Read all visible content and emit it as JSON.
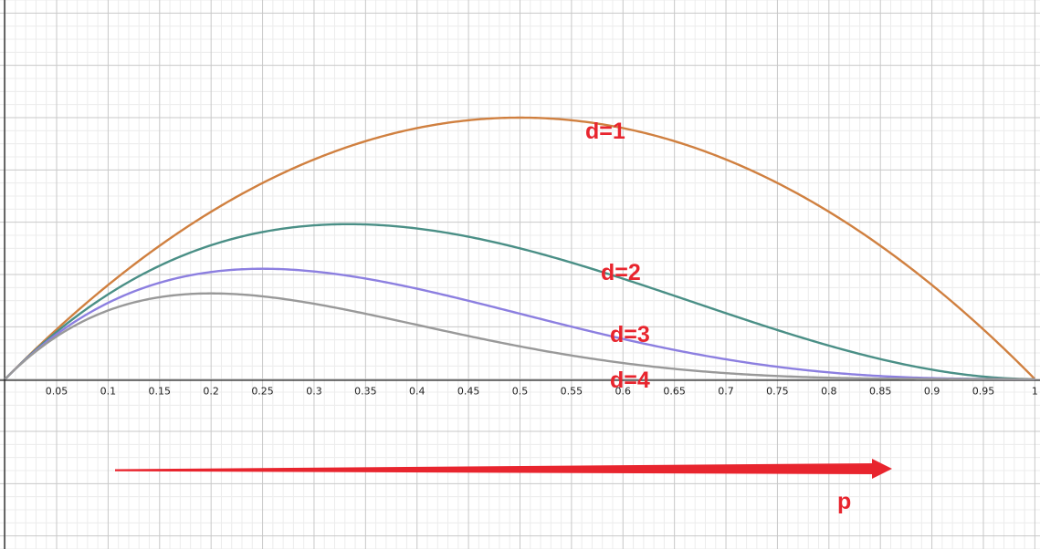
{
  "chart_data": {
    "type": "line",
    "grid": true,
    "xlim": [
      -0.005,
      1.005
    ],
    "ylim": [
      -0.1625,
      0.3625
    ],
    "x_ticks": [
      "0.05",
      "0.1",
      "0.15",
      "0.2",
      "0.25",
      "0.3",
      "0.35",
      "0.4",
      "0.45",
      "0.5",
      "0.55",
      "0.6",
      "0.65",
      "0.7",
      "0.75",
      "0.8",
      "0.85",
      "0.9",
      "0.95",
      "1"
    ],
    "series": [
      {
        "d": 1,
        "label": "d=1",
        "color": "#d08040",
        "x": [
          0,
          0.05,
          0.1,
          0.15,
          0.2,
          0.25,
          0.3,
          0.35,
          0.4,
          0.45,
          0.5,
          0.55,
          0.6,
          0.65,
          0.7,
          0.75,
          0.8,
          0.85,
          0.9,
          0.95,
          1
        ],
        "y": [
          0,
          0.0475,
          0.09,
          0.1275,
          0.16,
          0.1875,
          0.21,
          0.2275,
          0.24,
          0.2475,
          0.25,
          0.2475,
          0.24,
          0.2275,
          0.21,
          0.1875,
          0.16,
          0.1275,
          0.09,
          0.0475,
          0
        ]
      },
      {
        "d": 2,
        "label": "d=2",
        "color": "#4a8f86",
        "x": [
          0,
          0.05,
          0.1,
          0.15,
          0.2,
          0.25,
          0.3,
          0.35,
          0.4,
          0.45,
          0.5,
          0.55,
          0.6,
          0.65,
          0.7,
          0.75,
          0.8,
          0.85,
          0.9,
          0.95,
          1
        ],
        "y": [
          0,
          0.0451,
          0.081,
          0.1084,
          0.128,
          0.1406,
          0.147,
          0.1479,
          0.144,
          0.1361,
          0.125,
          0.1114,
          0.096,
          0.0796,
          0.063,
          0.0469,
          0.032,
          0.0191,
          0.009,
          0.0024,
          0
        ]
      },
      {
        "d": 3,
        "label": "d=3",
        "color": "#8c7fe0",
        "x": [
          0,
          0.05,
          0.1,
          0.15,
          0.2,
          0.25,
          0.3,
          0.35,
          0.4,
          0.45,
          0.5,
          0.55,
          0.6,
          0.65,
          0.7,
          0.75,
          0.8,
          0.85,
          0.9,
          0.95,
          1
        ],
        "y": [
          0,
          0.0429,
          0.0729,
          0.0921,
          0.1024,
          0.1055,
          0.1029,
          0.0961,
          0.0864,
          0.0749,
          0.0625,
          0.0501,
          0.0384,
          0.0279,
          0.0189,
          0.0117,
          0.0064,
          0.0029,
          0.0009,
          0.0001,
          0
        ]
      },
      {
        "d": 4,
        "label": "d=4",
        "color": "#999999",
        "x": [
          0,
          0.05,
          0.1,
          0.15,
          0.2,
          0.25,
          0.3,
          0.35,
          0.4,
          0.45,
          0.5,
          0.55,
          0.6,
          0.65,
          0.7,
          0.75,
          0.8,
          0.85,
          0.9,
          0.95,
          1
        ],
        "y": [
          0,
          0.0407,
          0.0656,
          0.0783,
          0.0819,
          0.0791,
          0.072,
          0.0625,
          0.0518,
          0.0412,
          0.0313,
          0.0225,
          0.0154,
          0.0098,
          0.0057,
          0.0029,
          0.0013,
          0.0004,
          0.0001,
          0,
          0
        ]
      }
    ],
    "annotations": [
      {
        "text": "d=1",
        "series": 1
      },
      {
        "text": "d=2",
        "series": 2
      },
      {
        "text": "d=3",
        "series": 3
      },
      {
        "text": "d=4",
        "series": 4
      },
      {
        "text": "p",
        "meaning": "arrow pointing right (increasing p)"
      }
    ],
    "arrow_color": "#e8252e"
  }
}
